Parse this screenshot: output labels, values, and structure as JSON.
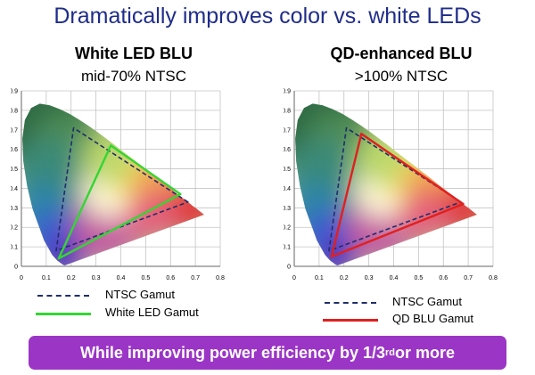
{
  "title": "Dramatically improves color vs. white LEDs",
  "left_panel": {
    "title": "White LED BLU",
    "subtitle": "mid-70% NTSC",
    "legend": [
      {
        "label": "NTSC Gamut",
        "color": "#1f2d6b",
        "style": "dashed"
      },
      {
        "label": "White LED Gamut",
        "color": "#33d633",
        "style": "solid"
      }
    ]
  },
  "right_panel": {
    "title": "QD-enhanced BLU",
    "subtitle": ">100% NTSC",
    "legend": [
      {
        "label": "NTSC Gamut",
        "color": "#1f2d6b",
        "style": "dashed"
      },
      {
        "label": "QD BLU Gamut",
        "color": "#e02020",
        "style": "solid"
      }
    ]
  },
  "banner": {
    "prefix": "While improving power efficiency by 1/3",
    "sup": "rd",
    "suffix": " or more",
    "color": "#9b35c6"
  },
  "chart_data": [
    {
      "type": "scatter",
      "x_ticks": [
        "0",
        "0.1",
        "0.2",
        "0.3",
        "0.4",
        "0.5",
        "0.6",
        "0.7",
        "0.8"
      ],
      "y_ticks": [
        "0",
        "0.1",
        "0.2",
        "0.3",
        "0.4",
        "0.5",
        "0.6",
        "0.7",
        "0.8",
        "0.9"
      ],
      "xlim": [
        0,
        0.8
      ],
      "ylim": [
        0,
        0.9
      ],
      "series": [
        {
          "name": "NTSC Gamut",
          "color": "#1f2d6b",
          "dashed": true,
          "points": [
            [
              0.67,
              0.33
            ],
            [
              0.21,
              0.71
            ],
            [
              0.14,
              0.08
            ]
          ]
        },
        {
          "name": "White LED Gamut",
          "color": "#33d633",
          "dashed": false,
          "points": [
            [
              0.64,
              0.37
            ],
            [
              0.36,
              0.62
            ],
            [
              0.15,
              0.04
            ]
          ]
        }
      ]
    },
    {
      "type": "scatter",
      "x_ticks": [
        "0",
        "0.1",
        "0.2",
        "0.3",
        "0.4",
        "0.5",
        "0.6",
        "0.7",
        "0.8"
      ],
      "y_ticks": [
        "0",
        "0.1",
        "0.2",
        "0.3",
        "0.4",
        "0.5",
        "0.6",
        "0.7",
        "0.8",
        "0.9"
      ],
      "xlim": [
        0,
        0.8
      ],
      "ylim": [
        0,
        0.9
      ],
      "series": [
        {
          "name": "NTSC Gamut",
          "color": "#1f2d6b",
          "dashed": true,
          "points": [
            [
              0.67,
              0.33
            ],
            [
              0.21,
              0.71
            ],
            [
              0.14,
              0.08
            ]
          ]
        },
        {
          "name": "QD BLU Gamut",
          "color": "#e02020",
          "dashed": false,
          "points": [
            [
              0.68,
              0.32
            ],
            [
              0.27,
              0.68
            ],
            [
              0.15,
              0.05
            ]
          ]
        }
      ]
    }
  ]
}
